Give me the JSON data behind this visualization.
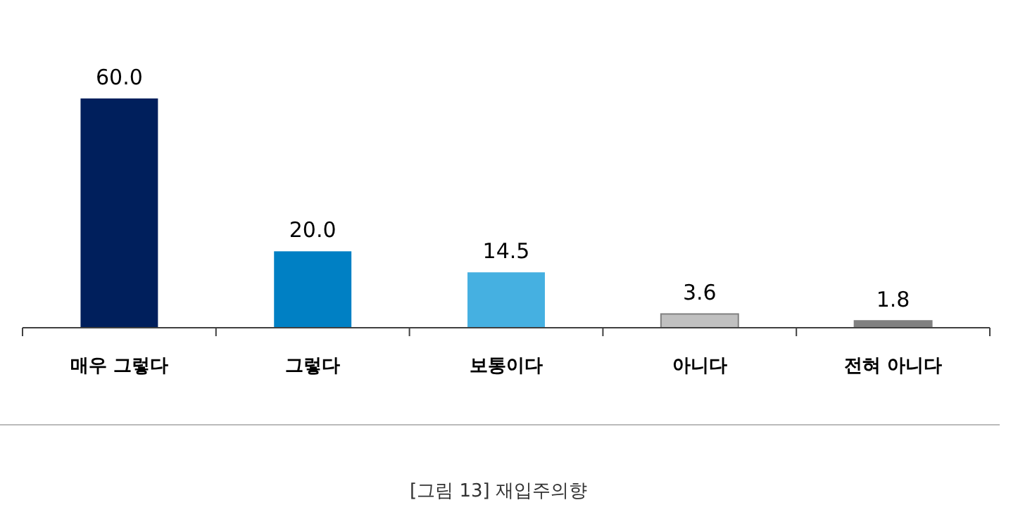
{
  "chart_data": {
    "type": "bar",
    "categories": [
      "매우 그렇다",
      "그렇다",
      "보통이다",
      "아니다",
      "전혀 아니다"
    ],
    "values": [
      60.0,
      20.0,
      14.5,
      3.6,
      1.8
    ],
    "colors": [
      "#001f5c",
      "#0080c4",
      "#45b0e1",
      "#c0c0c0",
      "#808080"
    ],
    "value_labels": [
      "60.0",
      "20.0",
      "14.5",
      "3.6",
      "1.8"
    ],
    "annotations": [
      "[그림 13] 재입주의향"
    ]
  }
}
